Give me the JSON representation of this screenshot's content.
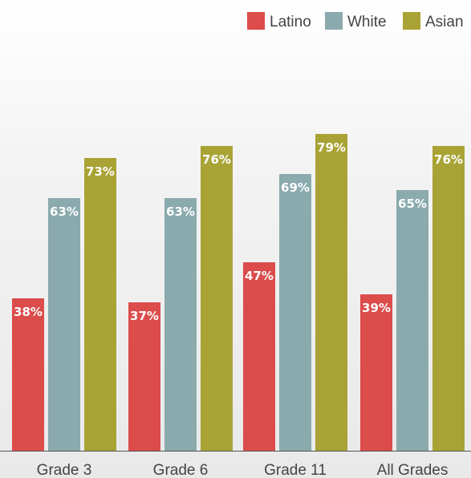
{
  "chart_data": {
    "type": "bar",
    "categories": [
      "Grade 3",
      "Grade 6",
      "Grade 11",
      "All Grades"
    ],
    "series": [
      {
        "name": "Latino",
        "color": "#db4c4b",
        "values": [
          38,
          37,
          47,
          39
        ]
      },
      {
        "name": "White",
        "color": "#8aaaad",
        "values": [
          63,
          63,
          69,
          65
        ]
      },
      {
        "name": "Asian",
        "color": "#a9a335",
        "values": [
          73,
          76,
          79,
          76
        ]
      }
    ],
    "value_suffix": "%",
    "ylim": [
      0,
      100
    ],
    "grid": false,
    "legend_position": "top-right",
    "axis_color": "#555555"
  }
}
